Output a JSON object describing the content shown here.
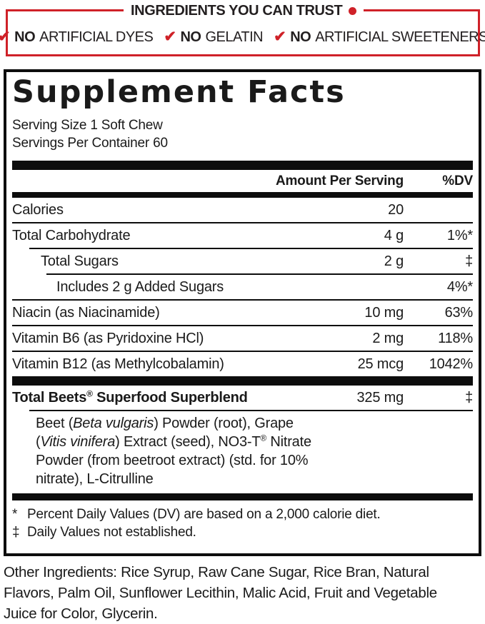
{
  "banner": {
    "title": "INGREDIENTS YOU CAN TRUST",
    "check_icon": "✔",
    "accent_color": "#cf2128",
    "items": [
      {
        "no": "NO",
        "rest": "ARTIFICIAL DYES"
      },
      {
        "no": "NO",
        "rest": "GELATIN"
      },
      {
        "no": "NO",
        "rest": "ARTIFICIAL SWEETENERS"
      }
    ]
  },
  "facts": {
    "title": "Supplement Facts",
    "serving_size": "Serving Size 1 Soft Chew",
    "servings_per_container": "Servings Per Container 60",
    "columns": {
      "amount": "Amount Per Serving",
      "dv": "%DV"
    },
    "rows": [
      {
        "name": "Calories",
        "amount": "20",
        "dv": ""
      },
      {
        "name": "Total Carbohydrate",
        "amount": "4 g",
        "dv": "1%*"
      },
      {
        "name": "Total Sugars",
        "amount": "2 g",
        "dv": "‡"
      },
      {
        "name": "Includes 2 g Added Sugars",
        "amount": "",
        "dv": "4%*"
      },
      {
        "name": "Niacin (as Niacinamide)",
        "amount": "10 mg",
        "dv": "63%"
      },
      {
        "name": "Vitamin B6 (as Pyridoxine HCl)",
        "amount": "2 mg",
        "dv": "118%"
      },
      {
        "name": "Vitamin B12 (as Methylcobalamin)",
        "amount": "25 mcg",
        "dv": "1042%"
      }
    ],
    "blend": {
      "name_main": "Total Beets",
      "name_reg_mark": "®",
      "name_rest": " Superfood Superblend",
      "amount": "325 mg",
      "dv": "‡",
      "desc_line1_pre": "Beet (",
      "desc_line1_italic": "Beta vulgaris",
      "desc_line1_post": ") Powder (root), Grape",
      "desc_line2_pre": "(",
      "desc_line2_italic": "Vitis vinifera",
      "desc_line2_mid": ") Extract (seed), NO3-T",
      "desc_line2_reg_mark": "®",
      "desc_line2_post": " Nitrate",
      "desc_line3": "Powder (from beetroot extract) (std. for 10%",
      "desc_line4": "nitrate), L-Citrulline"
    },
    "footnotes": [
      {
        "marker": "*",
        "text": "Percent Daily Values (DV) are based on a 2,000 calorie diet."
      },
      {
        "marker": "‡",
        "text": "Daily Values not established."
      }
    ]
  },
  "other_ingredients": {
    "lines": [
      "Other Ingredients: Rice Syrup, Raw Cane Sugar, Rice Bran, Natural",
      "Flavors, Palm Oil, Sunflower Lecithin, Malic Acid, Fruit and Vegetable",
      "Juice for Color, Glycerin."
    ]
  }
}
